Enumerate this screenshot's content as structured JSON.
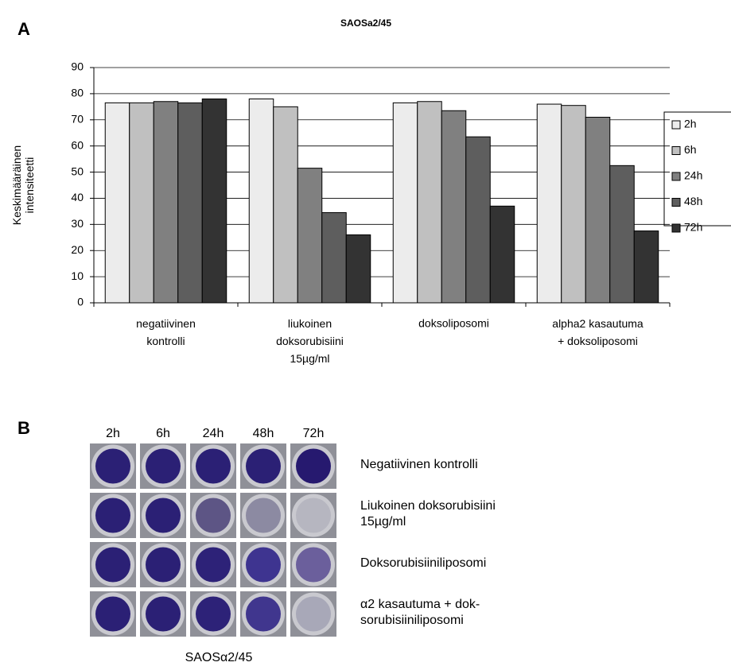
{
  "panel_labels": [
    "A",
    "B"
  ],
  "chart_data": {
    "type": "bar",
    "title": "SAOSa2/45",
    "y_label": "Keskimääräinen\nintensiteetti",
    "categories": [
      "negatiivinen\nkontrolli",
      "liukoinen\ndoksorubisiini\n15µg/ml",
      "doksoliposomi",
      "alpha2 kasautuma\n+ doksoliposomi"
    ],
    "series": [
      {
        "name": "2h",
        "color": "#ececec",
        "values": [
          76.5,
          78,
          76.5,
          76
        ]
      },
      {
        "name": "6h",
        "color": "#c0c0c0",
        "values": [
          76.5,
          75,
          77,
          75.5
        ]
      },
      {
        "name": "24h",
        "color": "#808080",
        "values": [
          77,
          51.5,
          73.5,
          71
        ]
      },
      {
        "name": "48h",
        "color": "#5e5e5e",
        "values": [
          76.5,
          34.5,
          63.5,
          52.5
        ]
      },
      {
        "name": "72h",
        "color": "#333333",
        "values": [
          78,
          26,
          37,
          27.5
        ]
      }
    ],
    "ylim": [
      0,
      90
    ],
    "yticks": [
      0,
      10,
      20,
      30,
      40,
      50,
      60,
      70,
      80,
      90
    ],
    "grid": true,
    "legend": "right"
  },
  "well_panel": {
    "columns": [
      "2h",
      "6h",
      "24h",
      "48h",
      "72h"
    ],
    "rows": [
      {
        "label": "Negatiivinen kontrolli",
        "colors": [
          "#2b2075",
          "#2b2075",
          "#2b2075",
          "#2b2075",
          "#26196f"
        ]
      },
      {
        "label": "Liukoinen doksorubisiini\n15µg/ml",
        "colors": [
          "#2b2075",
          "#2b2075",
          "#5d5585",
          "#8c8aa2",
          "#b6b6c0"
        ]
      },
      {
        "label": "Doksorubisiiniliposomi",
        "colors": [
          "#2b2075",
          "#2b2075",
          "#2d2278",
          "#3e3490",
          "#6b5f9c"
        ]
      },
      {
        "label": "α2 kasautuma + dok-\nsorubisiiniliposomi",
        "colors": [
          "#2b2075",
          "#2b2075",
          "#2d2278",
          "#40368e",
          "#a8a8b8"
        ]
      }
    ],
    "caption": "SAOSα2/45"
  }
}
